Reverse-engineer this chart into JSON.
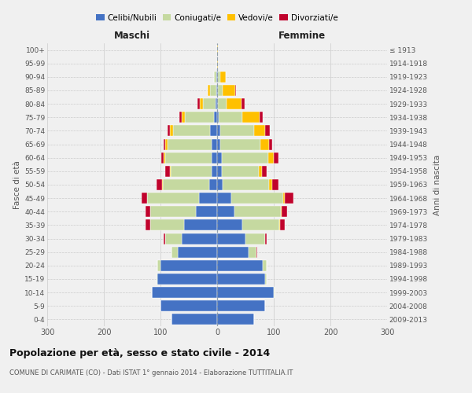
{
  "age_groups": [
    "0-4",
    "5-9",
    "10-14",
    "15-19",
    "20-24",
    "25-29",
    "30-34",
    "35-39",
    "40-44",
    "45-49",
    "50-54",
    "55-59",
    "60-64",
    "65-69",
    "70-74",
    "75-79",
    "80-84",
    "85-89",
    "90-94",
    "95-99",
    "100+"
  ],
  "birth_years": [
    "2009-2013",
    "2004-2008",
    "1999-2003",
    "1994-1998",
    "1989-1993",
    "1984-1988",
    "1979-1983",
    "1974-1978",
    "1969-1973",
    "1964-1968",
    "1959-1963",
    "1954-1958",
    "1949-1953",
    "1944-1948",
    "1939-1943",
    "1934-1938",
    "1929-1933",
    "1924-1928",
    "1919-1923",
    "1914-1918",
    "≤ 1913"
  ],
  "males": {
    "celibe": [
      80,
      100,
      115,
      105,
      100,
      70,
      62,
      58,
      38,
      32,
      14,
      10,
      10,
      10,
      13,
      5,
      3,
      2,
      2,
      0,
      0
    ],
    "coniugato": [
      0,
      0,
      0,
      2,
      5,
      10,
      30,
      60,
      80,
      92,
      82,
      72,
      82,
      78,
      65,
      52,
      22,
      10,
      3,
      0,
      0
    ],
    "vedovo": [
      0,
      0,
      0,
      0,
      0,
      0,
      0,
      0,
      0,
      0,
      1,
      1,
      2,
      3,
      5,
      5,
      5,
      5,
      0,
      0,
      0
    ],
    "divorziato": [
      0,
      0,
      0,
      0,
      0,
      1,
      3,
      8,
      8,
      10,
      10,
      8,
      5,
      3,
      5,
      5,
      5,
      0,
      0,
      0,
      0
    ]
  },
  "females": {
    "nubile": [
      65,
      85,
      100,
      85,
      80,
      55,
      50,
      45,
      30,
      25,
      10,
      8,
      8,
      5,
      5,
      3,
      2,
      2,
      2,
      0,
      0
    ],
    "coniugata": [
      0,
      0,
      2,
      3,
      8,
      15,
      35,
      65,
      82,
      92,
      82,
      66,
      82,
      72,
      60,
      42,
      15,
      8,
      3,
      0,
      0
    ],
    "vedova": [
      0,
      0,
      0,
      0,
      0,
      0,
      0,
      1,
      2,
      3,
      5,
      5,
      10,
      15,
      20,
      30,
      26,
      22,
      10,
      2,
      1
    ],
    "divorziata": [
      0,
      0,
      0,
      0,
      0,
      1,
      3,
      8,
      10,
      15,
      12,
      8,
      8,
      5,
      8,
      5,
      5,
      2,
      0,
      0,
      0
    ]
  },
  "color_celibe": "#4472c4",
  "color_coniugato": "#c5d9a0",
  "color_vedovo": "#ffc000",
  "color_divorziato": "#c0032c",
  "xlim": 300,
  "title": "Popolazione per età, sesso e stato civile - 2014",
  "subtitle": "COMUNE DI CARIMATE (CO) - Dati ISTAT 1° gennaio 2014 - Elaborazione TUTTITALIA.IT",
  "ylabel_left": "Fasce di età",
  "ylabel_right": "Anni di nascita",
  "xlabel_maschi": "Maschi",
  "xlabel_femmine": "Femmine",
  "bg_color": "#f0f0f0",
  "bar_height": 0.82
}
